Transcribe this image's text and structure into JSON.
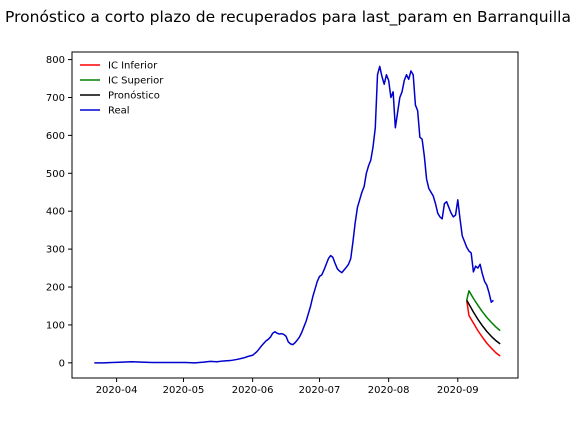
{
  "chart_data": {
    "type": "line",
    "title": "Pronóstico a corto plazo de recuperados para last_param en Barranquilla",
    "xlabel": "",
    "ylabel": "",
    "x_axis_type": "date",
    "xlim": [
      "2020-03-12",
      "2020-09-28"
    ],
    "ylim": [
      -40,
      820
    ],
    "x_ticks": [
      {
        "date": "2020-04-01",
        "label": "2020-04"
      },
      {
        "date": "2020-05-01",
        "label": "2020-05"
      },
      {
        "date": "2020-06-01",
        "label": "2020-06"
      },
      {
        "date": "2020-07-01",
        "label": "2020-07"
      },
      {
        "date": "2020-08-01",
        "label": "2020-08"
      },
      {
        "date": "2020-09-01",
        "label": "2020-09"
      }
    ],
    "y_ticks": [
      0,
      100,
      200,
      300,
      400,
      500,
      600,
      700,
      800
    ],
    "grid": false,
    "legend_position": "top-left",
    "series": [
      {
        "name": "IC Inferior",
        "color": "#ff0000",
        "points": [
          [
            "2020-09-05",
            165
          ],
          [
            "2020-09-06",
            125
          ],
          [
            "2020-09-08",
            105
          ],
          [
            "2020-09-10",
            85
          ],
          [
            "2020-09-12",
            68
          ],
          [
            "2020-09-14",
            52
          ],
          [
            "2020-09-16",
            39
          ],
          [
            "2020-09-18",
            27
          ],
          [
            "2020-09-20",
            18
          ]
        ]
      },
      {
        "name": "IC Superior",
        "color": "#008000",
        "points": [
          [
            "2020-09-05",
            165
          ],
          [
            "2020-09-06",
            190
          ],
          [
            "2020-09-08",
            170
          ],
          [
            "2020-09-10",
            152
          ],
          [
            "2020-09-12",
            135
          ],
          [
            "2020-09-14",
            120
          ],
          [
            "2020-09-16",
            107
          ],
          [
            "2020-09-18",
            95
          ],
          [
            "2020-09-20",
            85
          ]
        ]
      },
      {
        "name": "Pronóstico",
        "color": "#000000",
        "points": [
          [
            "2020-09-05",
            165
          ],
          [
            "2020-09-06",
            155
          ],
          [
            "2020-09-08",
            134
          ],
          [
            "2020-09-10",
            115
          ],
          [
            "2020-09-12",
            98
          ],
          [
            "2020-09-14",
            83
          ],
          [
            "2020-09-16",
            70
          ],
          [
            "2020-09-18",
            59
          ],
          [
            "2020-09-20",
            50
          ]
        ]
      },
      {
        "name": "Real",
        "color": "#0000cd",
        "points": [
          [
            "2020-03-22",
            0
          ],
          [
            "2020-03-26",
            0
          ],
          [
            "2020-03-30",
            1
          ],
          [
            "2020-04-04",
            2
          ],
          [
            "2020-04-08",
            3
          ],
          [
            "2020-04-12",
            2
          ],
          [
            "2020-04-17",
            1
          ],
          [
            "2020-04-22",
            1
          ],
          [
            "2020-04-27",
            1
          ],
          [
            "2020-05-02",
            1
          ],
          [
            "2020-05-06",
            0
          ],
          [
            "2020-05-10",
            2
          ],
          [
            "2020-05-13",
            4
          ],
          [
            "2020-05-16",
            3
          ],
          [
            "2020-05-19",
            5
          ],
          [
            "2020-05-22",
            6
          ],
          [
            "2020-05-25",
            9
          ],
          [
            "2020-05-28",
            13
          ],
          [
            "2020-05-30",
            17
          ],
          [
            "2020-06-01",
            20
          ],
          [
            "2020-06-03",
            30
          ],
          [
            "2020-06-05",
            45
          ],
          [
            "2020-06-07",
            58
          ],
          [
            "2020-06-08",
            62
          ],
          [
            "2020-06-09",
            68
          ],
          [
            "2020-06-10",
            78
          ],
          [
            "2020-06-11",
            82
          ],
          [
            "2020-06-12",
            78
          ],
          [
            "2020-06-13",
            76
          ],
          [
            "2020-06-14",
            77
          ],
          [
            "2020-06-15",
            75
          ],
          [
            "2020-06-16",
            70
          ],
          [
            "2020-06-17",
            55
          ],
          [
            "2020-06-18",
            50
          ],
          [
            "2020-06-19",
            48
          ],
          [
            "2020-06-20",
            53
          ],
          [
            "2020-06-21",
            60
          ],
          [
            "2020-06-22",
            68
          ],
          [
            "2020-06-23",
            80
          ],
          [
            "2020-06-24",
            95
          ],
          [
            "2020-06-25",
            110
          ],
          [
            "2020-06-26",
            130
          ],
          [
            "2020-06-27",
            150
          ],
          [
            "2020-06-28",
            175
          ],
          [
            "2020-06-29",
            195
          ],
          [
            "2020-06-30",
            215
          ],
          [
            "2020-07-01",
            228
          ],
          [
            "2020-07-02",
            232
          ],
          [
            "2020-07-03",
            245
          ],
          [
            "2020-07-04",
            260
          ],
          [
            "2020-07-05",
            275
          ],
          [
            "2020-07-06",
            283
          ],
          [
            "2020-07-07",
            278
          ],
          [
            "2020-07-08",
            262
          ],
          [
            "2020-07-09",
            248
          ],
          [
            "2020-07-10",
            242
          ],
          [
            "2020-07-11",
            238
          ],
          [
            "2020-07-12",
            245
          ],
          [
            "2020-07-13",
            252
          ],
          [
            "2020-07-14",
            260
          ],
          [
            "2020-07-15",
            275
          ],
          [
            "2020-07-16",
            320
          ],
          [
            "2020-07-17",
            370
          ],
          [
            "2020-07-18",
            410
          ],
          [
            "2020-07-19",
            430
          ],
          [
            "2020-07-20",
            450
          ],
          [
            "2020-07-21",
            465
          ],
          [
            "2020-07-22",
            500
          ],
          [
            "2020-07-23",
            520
          ],
          [
            "2020-07-24",
            535
          ],
          [
            "2020-07-25",
            570
          ],
          [
            "2020-07-26",
            620
          ],
          [
            "2020-07-27",
            760
          ],
          [
            "2020-07-28",
            782
          ],
          [
            "2020-07-29",
            755
          ],
          [
            "2020-07-30",
            735
          ],
          [
            "2020-07-31",
            760
          ],
          [
            "2020-08-01",
            745
          ],
          [
            "2020-08-02",
            700
          ],
          [
            "2020-08-03",
            715
          ],
          [
            "2020-08-04",
            620
          ],
          [
            "2020-08-05",
            660
          ],
          [
            "2020-08-06",
            700
          ],
          [
            "2020-08-07",
            715
          ],
          [
            "2020-08-08",
            745
          ],
          [
            "2020-08-09",
            760
          ],
          [
            "2020-08-10",
            748
          ],
          [
            "2020-08-11",
            770
          ],
          [
            "2020-08-12",
            760
          ],
          [
            "2020-08-13",
            680
          ],
          [
            "2020-08-14",
            665
          ],
          [
            "2020-08-15",
            595
          ],
          [
            "2020-08-16",
            590
          ],
          [
            "2020-08-17",
            545
          ],
          [
            "2020-08-18",
            485
          ],
          [
            "2020-08-19",
            460
          ],
          [
            "2020-08-20",
            450
          ],
          [
            "2020-08-21",
            440
          ],
          [
            "2020-08-22",
            420
          ],
          [
            "2020-08-23",
            395
          ],
          [
            "2020-08-24",
            385
          ],
          [
            "2020-08-25",
            380
          ],
          [
            "2020-08-26",
            420
          ],
          [
            "2020-08-27",
            425
          ],
          [
            "2020-08-28",
            410
          ],
          [
            "2020-08-29",
            395
          ],
          [
            "2020-08-30",
            385
          ],
          [
            "2020-08-31",
            390
          ],
          [
            "2020-09-01",
            430
          ],
          [
            "2020-09-02",
            380
          ],
          [
            "2020-09-03",
            335
          ],
          [
            "2020-09-04",
            320
          ],
          [
            "2020-09-05",
            305
          ],
          [
            "2020-09-06",
            295
          ],
          [
            "2020-09-07",
            290
          ],
          [
            "2020-09-08",
            240
          ],
          [
            "2020-09-09",
            255
          ],
          [
            "2020-09-10",
            250
          ],
          [
            "2020-09-11",
            260
          ],
          [
            "2020-09-12",
            235
          ],
          [
            "2020-09-13",
            215
          ],
          [
            "2020-09-14",
            205
          ],
          [
            "2020-09-15",
            185
          ],
          [
            "2020-09-16",
            160
          ],
          [
            "2020-09-17",
            165
          ]
        ]
      }
    ]
  }
}
